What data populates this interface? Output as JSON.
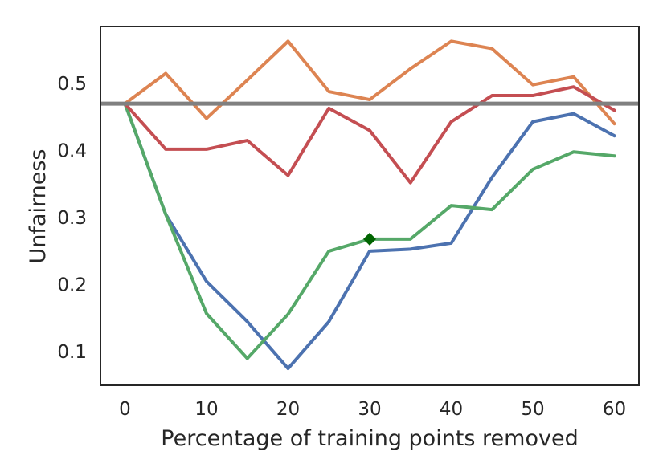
{
  "chart_data": {
    "type": "line",
    "title": "",
    "xlabel": "Percentage of training points removed",
    "ylabel": "Unfairness",
    "x": [
      0,
      5,
      10,
      15,
      20,
      25,
      30,
      35,
      40,
      45,
      50,
      55,
      60
    ],
    "xlim": [
      -3,
      63
    ],
    "ylim": [
      0.05,
      0.585
    ],
    "xticks": [
      0,
      10,
      20,
      30,
      40,
      50,
      60
    ],
    "yticks": [
      0.1,
      0.2,
      0.3,
      0.4,
      0.5
    ],
    "ytick_labels": [
      "0.1",
      "0.2",
      "0.3",
      "0.4",
      "0.5"
    ],
    "grid": false,
    "legend": "none",
    "baseline": {
      "value": 0.47,
      "color": "#808080"
    },
    "series": [
      {
        "name": "blue",
        "color": "#4c72b0",
        "values": [
          0.47,
          0.305,
          0.205,
          0.145,
          0.075,
          0.145,
          0.25,
          0.253,
          0.262,
          0.36,
          0.443,
          0.455,
          0.422
        ]
      },
      {
        "name": "green",
        "color": "#55a868",
        "values": [
          0.47,
          0.305,
          0.157,
          0.09,
          0.156,
          0.25,
          0.268,
          0.268,
          0.318,
          0.312,
          0.372,
          0.398,
          0.392
        ]
      },
      {
        "name": "orange",
        "color": "#dd8452",
        "values": [
          0.47,
          0.515,
          0.448,
          0.505,
          0.563,
          0.488,
          0.476,
          0.522,
          0.563,
          0.552,
          0.498,
          0.51,
          0.44
        ]
      },
      {
        "name": "red",
        "color": "#c44e52",
        "values": [
          0.47,
          0.402,
          0.402,
          0.415,
          0.363,
          0.463,
          0.43,
          0.352,
          0.443,
          0.482,
          0.482,
          0.495,
          0.46
        ]
      }
    ],
    "annotations": [
      {
        "type": "marker",
        "shape": "diamond",
        "x": 30,
        "y": 0.268,
        "color": "#006400"
      }
    ]
  }
}
